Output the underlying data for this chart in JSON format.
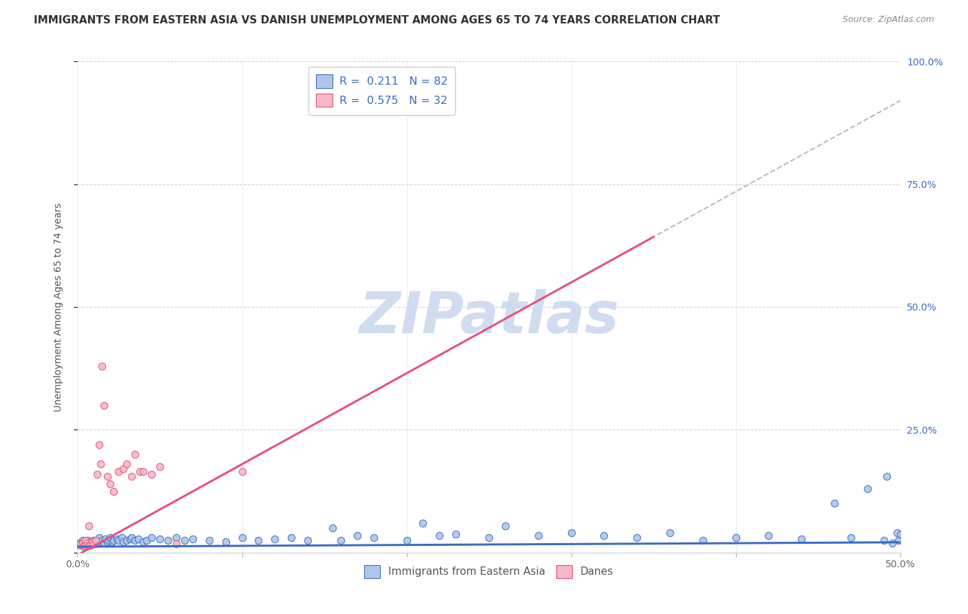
{
  "title": "IMMIGRANTS FROM EASTERN ASIA VS DANISH UNEMPLOYMENT AMONG AGES 65 TO 74 YEARS CORRELATION CHART",
  "source": "Source: ZipAtlas.com",
  "ylabel": "Unemployment Among Ages 65 to 74 years",
  "xlim": [
    0.0,
    0.5
  ],
  "ylim": [
    0.0,
    1.0
  ],
  "R_blue": 0.211,
  "N_blue": 82,
  "R_pink": 0.575,
  "N_pink": 32,
  "trendline_blue_slope": 0.018,
  "trendline_blue_intercept": 0.012,
  "trendline_pink_slope": 1.85,
  "trendline_pink_intercept": -0.005,
  "scatter_blue_x": [
    0.001,
    0.002,
    0.003,
    0.003,
    0.004,
    0.004,
    0.005,
    0.005,
    0.006,
    0.006,
    0.007,
    0.007,
    0.008,
    0.008,
    0.009,
    0.01,
    0.01,
    0.011,
    0.012,
    0.012,
    0.013,
    0.014,
    0.015,
    0.016,
    0.017,
    0.018,
    0.019,
    0.02,
    0.021,
    0.022,
    0.024,
    0.025,
    0.027,
    0.028,
    0.03,
    0.032,
    0.033,
    0.035,
    0.037,
    0.04,
    0.042,
    0.045,
    0.05,
    0.055,
    0.06,
    0.065,
    0.07,
    0.08,
    0.09,
    0.1,
    0.11,
    0.12,
    0.13,
    0.14,
    0.155,
    0.16,
    0.17,
    0.18,
    0.2,
    0.21,
    0.22,
    0.23,
    0.25,
    0.26,
    0.28,
    0.3,
    0.32,
    0.34,
    0.36,
    0.38,
    0.4,
    0.42,
    0.44,
    0.46,
    0.47,
    0.48,
    0.49,
    0.492,
    0.495,
    0.498,
    0.499,
    0.5
  ],
  "scatter_blue_y": [
    0.02,
    0.015,
    0.018,
    0.025,
    0.012,
    0.02,
    0.022,
    0.018,
    0.025,
    0.015,
    0.02,
    0.018,
    0.022,
    0.015,
    0.02,
    0.025,
    0.018,
    0.022,
    0.02,
    0.025,
    0.03,
    0.022,
    0.025,
    0.02,
    0.028,
    0.022,
    0.025,
    0.03,
    0.022,
    0.025,
    0.028,
    0.025,
    0.03,
    0.022,
    0.025,
    0.028,
    0.03,
    0.025,
    0.028,
    0.022,
    0.025,
    0.03,
    0.028,
    0.025,
    0.03,
    0.025,
    0.028,
    0.025,
    0.022,
    0.03,
    0.025,
    0.028,
    0.03,
    0.025,
    0.05,
    0.025,
    0.035,
    0.03,
    0.025,
    0.06,
    0.035,
    0.038,
    0.03,
    0.055,
    0.035,
    0.04,
    0.035,
    0.03,
    0.04,
    0.025,
    0.03,
    0.035,
    0.028,
    0.1,
    0.03,
    0.13,
    0.025,
    0.155,
    0.02,
    0.04,
    0.025,
    0.038
  ],
  "scatter_pink_x": [
    0.001,
    0.002,
    0.003,
    0.004,
    0.005,
    0.005,
    0.006,
    0.007,
    0.007,
    0.008,
    0.009,
    0.01,
    0.011,
    0.012,
    0.013,
    0.014,
    0.015,
    0.016,
    0.018,
    0.02,
    0.022,
    0.025,
    0.028,
    0.03,
    0.033,
    0.035,
    0.038,
    0.04,
    0.045,
    0.05,
    0.06,
    0.1
  ],
  "scatter_pink_y": [
    0.015,
    0.018,
    0.02,
    0.015,
    0.018,
    0.025,
    0.02,
    0.055,
    0.015,
    0.018,
    0.022,
    0.018,
    0.025,
    0.16,
    0.22,
    0.18,
    0.38,
    0.3,
    0.155,
    0.14,
    0.125,
    0.165,
    0.17,
    0.18,
    0.155,
    0.2,
    0.165,
    0.165,
    0.16,
    0.175,
    0.018,
    0.165
  ],
  "trendline_blue_color": "#3B6BC4",
  "trendline_pink_color": "#E8507A",
  "trendline_dashed_color": "#BBBBBB",
  "scatter_blue_color": "#AEC6E8",
  "scatter_pink_color": "#F4B8C8",
  "background_color": "#FFFFFF",
  "grid_color": "#CCCCCC",
  "watermark_text": "ZIPatlas",
  "watermark_color": "#D0DCF0"
}
